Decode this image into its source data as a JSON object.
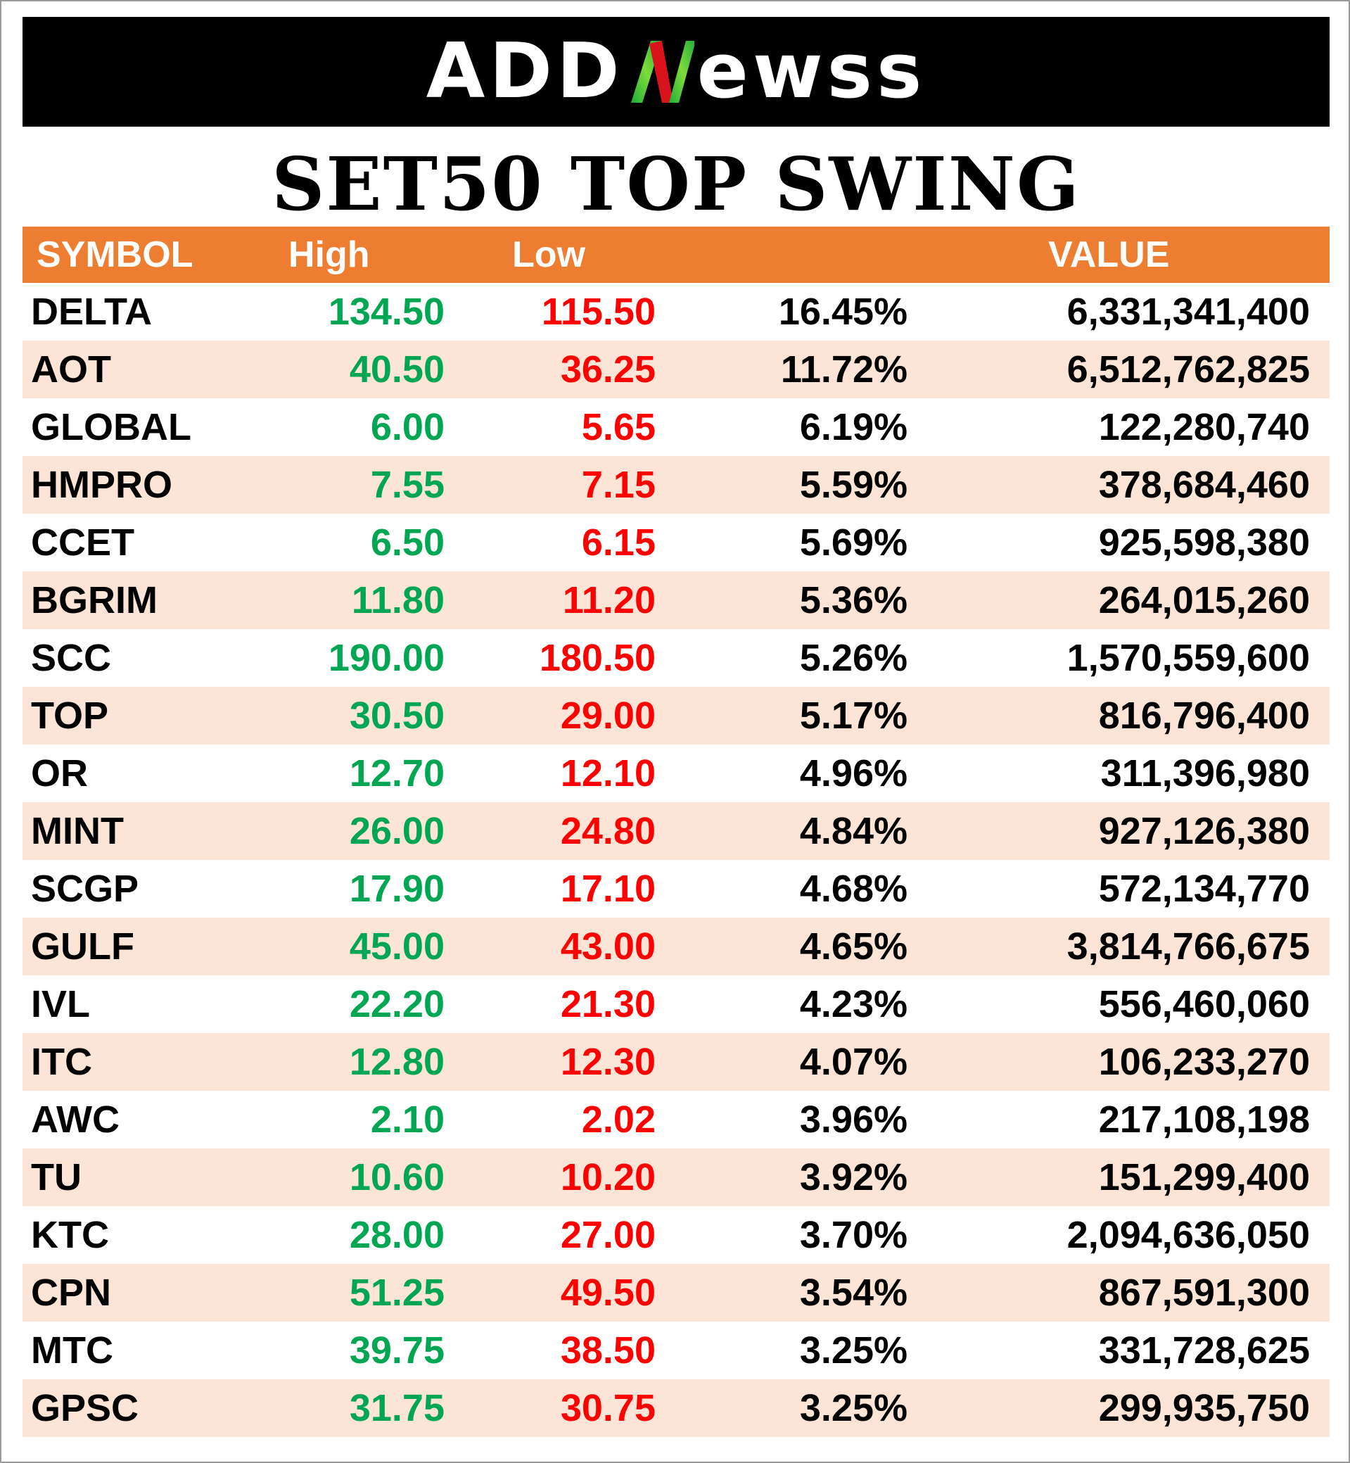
{
  "brand": {
    "logo_text_left": "ADD",
    "logo_text_right": "ewss"
  },
  "title": "SET50 TOP SWING",
  "headers": {
    "symbol": "SYMBOL",
    "high": "High",
    "low": "Low",
    "pct": "",
    "value": "VALUE"
  },
  "colors": {
    "header_bg": "#ed7d31",
    "alt_row_bg": "#fce4d6",
    "high": "#00a651",
    "low": "#ff0000"
  },
  "rows": [
    {
      "symbol": "DELTA",
      "high": "134.50",
      "low": "115.50",
      "pct": "16.45%",
      "value": "6,331,341,400"
    },
    {
      "symbol": "AOT",
      "high": "40.50",
      "low": "36.25",
      "pct": "11.72%",
      "value": "6,512,762,825"
    },
    {
      "symbol": "GLOBAL",
      "high": "6.00",
      "low": "5.65",
      "pct": "6.19%",
      "value": "122,280,740"
    },
    {
      "symbol": "HMPRO",
      "high": "7.55",
      "low": "7.15",
      "pct": "5.59%",
      "value": "378,684,460"
    },
    {
      "symbol": "CCET",
      "high": "6.50",
      "low": "6.15",
      "pct": "5.69%",
      "value": "925,598,380"
    },
    {
      "symbol": "BGRIM",
      "high": "11.80",
      "low": "11.20",
      "pct": "5.36%",
      "value": "264,015,260"
    },
    {
      "symbol": "SCC",
      "high": "190.00",
      "low": "180.50",
      "pct": "5.26%",
      "value": "1,570,559,600"
    },
    {
      "symbol": "TOP",
      "high": "30.50",
      "low": "29.00",
      "pct": "5.17%",
      "value": "816,796,400"
    },
    {
      "symbol": "OR",
      "high": "12.70",
      "low": "12.10",
      "pct": "4.96%",
      "value": "311,396,980"
    },
    {
      "symbol": "MINT",
      "high": "26.00",
      "low": "24.80",
      "pct": "4.84%",
      "value": "927,126,380"
    },
    {
      "symbol": "SCGP",
      "high": "17.90",
      "low": "17.10",
      "pct": "4.68%",
      "value": "572,134,770"
    },
    {
      "symbol": "GULF",
      "high": "45.00",
      "low": "43.00",
      "pct": "4.65%",
      "value": "3,814,766,675"
    },
    {
      "symbol": "IVL",
      "high": "22.20",
      "low": "21.30",
      "pct": "4.23%",
      "value": "556,460,060"
    },
    {
      "symbol": "ITC",
      "high": "12.80",
      "low": "12.30",
      "pct": "4.07%",
      "value": "106,233,270"
    },
    {
      "symbol": "AWC",
      "high": "2.10",
      "low": "2.02",
      "pct": "3.96%",
      "value": "217,108,198"
    },
    {
      "symbol": "TU",
      "high": "10.60",
      "low": "10.20",
      "pct": "3.92%",
      "value": "151,299,400"
    },
    {
      "symbol": "KTC",
      "high": "28.00",
      "low": "27.00",
      "pct": "3.70%",
      "value": "2,094,636,050"
    },
    {
      "symbol": "CPN",
      "high": "51.25",
      "low": "49.50",
      "pct": "3.54%",
      "value": "867,591,300"
    },
    {
      "symbol": "MTC",
      "high": "39.75",
      "low": "38.50",
      "pct": "3.25%",
      "value": "331,728,625"
    },
    {
      "symbol": "GPSC",
      "high": "31.75",
      "low": "30.75",
      "pct": "3.25%",
      "value": "299,935,750"
    }
  ]
}
